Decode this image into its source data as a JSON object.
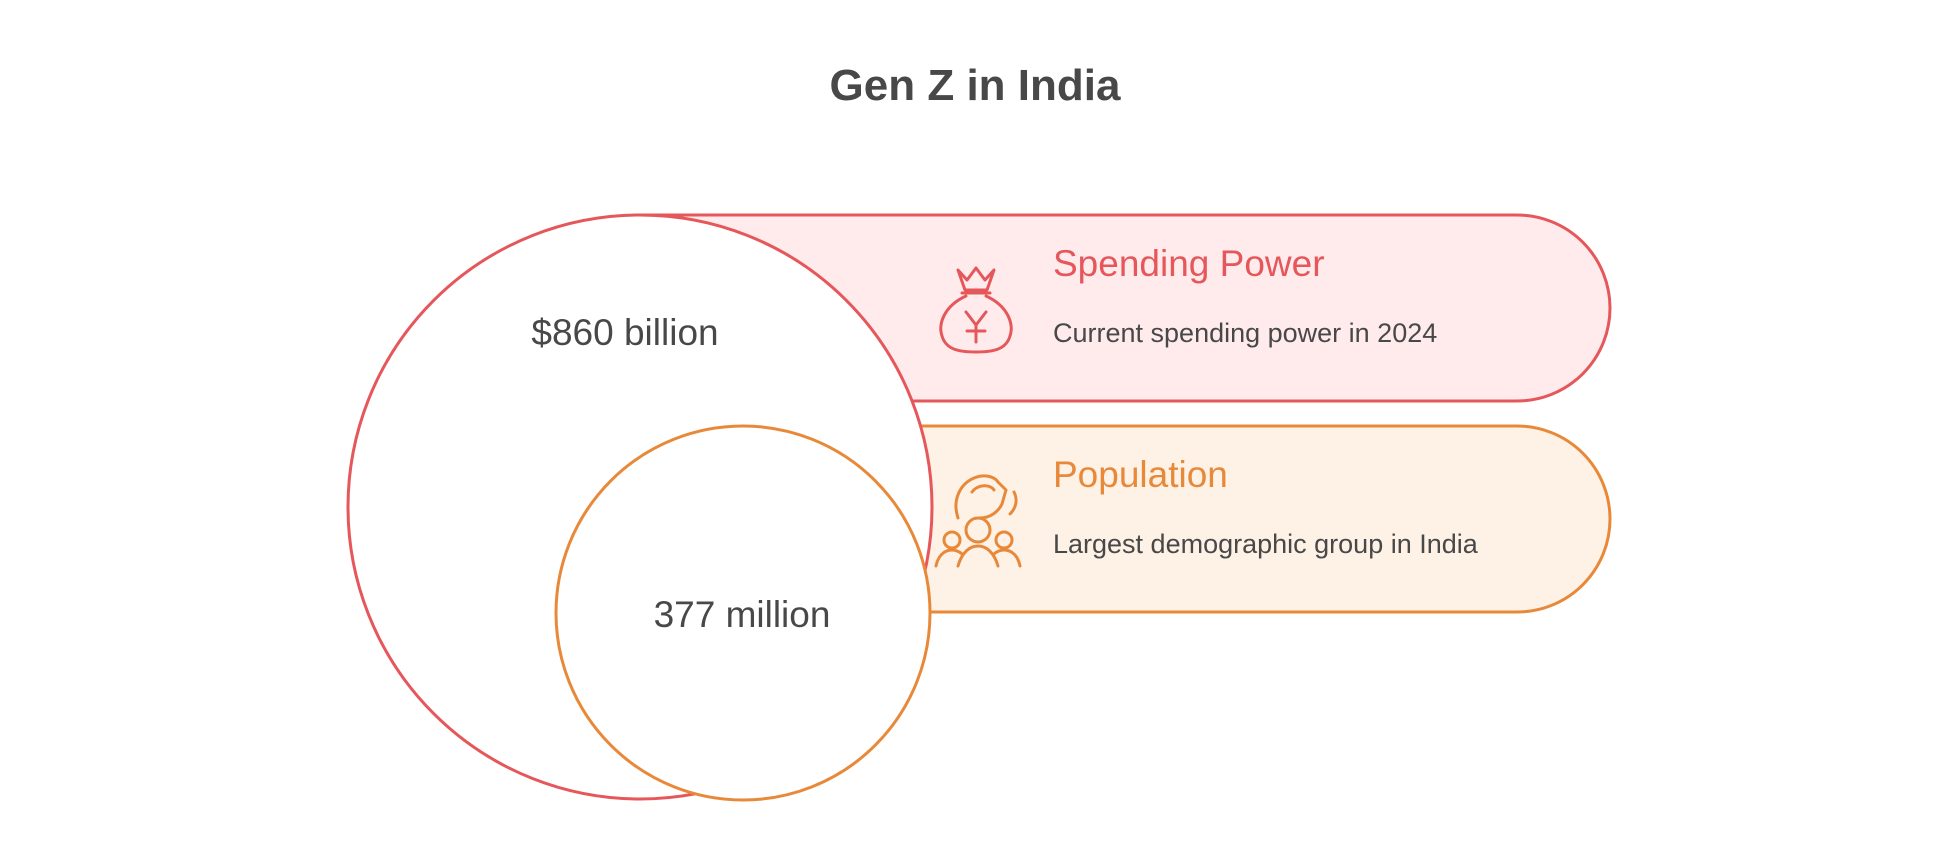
{
  "title": "Gen Z in India",
  "colors": {
    "spending_accent": "#E5575B",
    "spending_fill": "#FFEBEC",
    "population_accent": "#E8893A",
    "population_fill": "#FEF1E6",
    "text": "#484848",
    "circle_fill": "#FFFFFF"
  },
  "items": [
    {
      "key": "spending",
      "heading": "Spending Power",
      "description": "Current spending power in 2024",
      "value": "$860 billion",
      "icon": "money-bag-yuan-icon"
    },
    {
      "key": "population",
      "heading": "Population",
      "description": "Largest demographic group in India",
      "value": "377 million",
      "icon": "hand-over-people-icon"
    }
  ]
}
